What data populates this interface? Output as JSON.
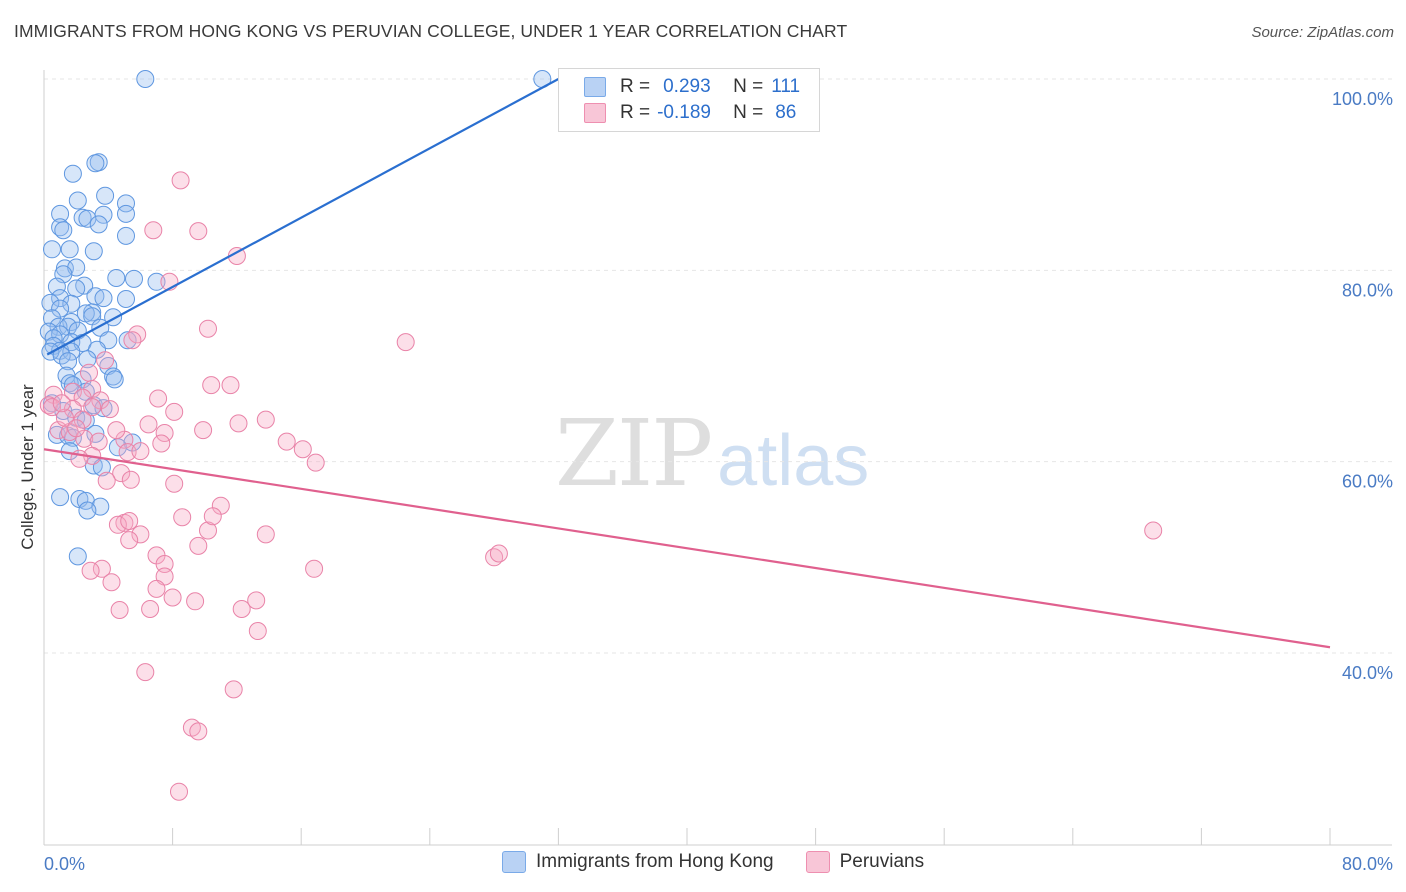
{
  "title": "IMMIGRANTS FROM HONG KONG VS PERUVIAN COLLEGE, UNDER 1 YEAR CORRELATION CHART",
  "source": "Source: ZipAtlas.com",
  "watermark": {
    "zip": "ZIP",
    "atlas": "atlas"
  },
  "legend": {
    "r_label": "R =",
    "n_label": "N =",
    "series": [
      {
        "name": "Immigrants from Hong Kong",
        "r": "0.293",
        "n": "111",
        "color": "#7aaae8",
        "fill": "#b9d2f4"
      },
      {
        "name": "Peruvians",
        "r": "-0.189",
        "n": "86",
        "color": "#ee8fb0",
        "fill": "#f8c6d7"
      }
    ]
  },
  "chart_data": {
    "type": "scatter",
    "title": "IMMIGRANTS FROM HONG KONG VS PERUVIAN COLLEGE, UNDER 1 YEAR CORRELATION CHART",
    "xlabel": "",
    "ylabel": "College, Under 1 year",
    "xlim": [
      0,
      80
    ],
    "ylim": [
      20,
      102
    ],
    "x_tick_labels": [
      "0.0%",
      "80.0%"
    ],
    "y_ticks": [
      40,
      60,
      80,
      100
    ],
    "y_tick_labels": [
      "40.0%",
      "60.0%",
      "80.0%",
      "100.0%"
    ],
    "grid": true,
    "legend_position": "top-center",
    "series": [
      {
        "name": "Immigrants from Hong Kong",
        "color": "#2a6fd0",
        "trend": {
          "x0": 0.2,
          "y0": 71.2,
          "x1": 32.0,
          "y1": 100.0
        },
        "points": [
          [
            6.3,
            100
          ],
          [
            31,
            100
          ],
          [
            3.4,
            91.3
          ],
          [
            3.2,
            91.2
          ],
          [
            1.8,
            90.1
          ],
          [
            3.8,
            87.8
          ],
          [
            2.1,
            87.3
          ],
          [
            5.1,
            87
          ],
          [
            1.0,
            85.9
          ],
          [
            3.7,
            85.8
          ],
          [
            2.4,
            85.5
          ],
          [
            5.1,
            85.9
          ],
          [
            2.7,
            85.4
          ],
          [
            3.4,
            84.8
          ],
          [
            1.0,
            84.5
          ],
          [
            1.2,
            84.2
          ],
          [
            5.1,
            83.6
          ],
          [
            0.5,
            82.2
          ],
          [
            1.6,
            82.2
          ],
          [
            3.1,
            82.0
          ],
          [
            1.3,
            80.2
          ],
          [
            2.0,
            80.3
          ],
          [
            1.2,
            79.6
          ],
          [
            4.5,
            79.2
          ],
          [
            5.6,
            79.1
          ],
          [
            7,
            78.8
          ],
          [
            2.5,
            78.4
          ],
          [
            0.8,
            78.3
          ],
          [
            2.0,
            78.1
          ],
          [
            3.2,
            77.3
          ],
          [
            1.0,
            77.1
          ],
          [
            3.7,
            77.1
          ],
          [
            5.1,
            77.0
          ],
          [
            0.4,
            76.6
          ],
          [
            1.7,
            76.5
          ],
          [
            1.0,
            76.0
          ],
          [
            3.0,
            75.6
          ],
          [
            2.6,
            75.5
          ],
          [
            3.0,
            75.2
          ],
          [
            4.3,
            75.1
          ],
          [
            0.5,
            75.0
          ],
          [
            1.7,
            74.6
          ],
          [
            0.9,
            74.1
          ],
          [
            1.5,
            74.1
          ],
          [
            2.1,
            73.7
          ],
          [
            3.5,
            74.0
          ],
          [
            0.3,
            73.6
          ],
          [
            1.0,
            73.3
          ],
          [
            0.6,
            72.9
          ],
          [
            1.7,
            72.5
          ],
          [
            2.4,
            72.4
          ],
          [
            0.6,
            72.1
          ],
          [
            5.2,
            72.7
          ],
          [
            4.0,
            72.7
          ],
          [
            1.0,
            71.6
          ],
          [
            1.7,
            71.5
          ],
          [
            3.3,
            71.7
          ],
          [
            0.4,
            71.5
          ],
          [
            1.1,
            71.1
          ],
          [
            2.7,
            70.7
          ],
          [
            1.5,
            70.5
          ],
          [
            4.0,
            70.0
          ],
          [
            1.4,
            69.0
          ],
          [
            4.3,
            68.9
          ],
          [
            4.4,
            68.6
          ],
          [
            2.4,
            68.6
          ],
          [
            1.6,
            68.2
          ],
          [
            1.8,
            68.0
          ],
          [
            2.6,
            67.3
          ],
          [
            0.5,
            66.1
          ],
          [
            3.1,
            65.9
          ],
          [
            1.2,
            65.3
          ],
          [
            3.7,
            65.6
          ],
          [
            2.0,
            64.6
          ],
          [
            2.6,
            64.3
          ],
          [
            3.2,
            62.9
          ],
          [
            0.8,
            62.8
          ],
          [
            1.5,
            62.7
          ],
          [
            1.8,
            62.5
          ],
          [
            5.5,
            62.0
          ],
          [
            4.6,
            61.5
          ],
          [
            1.6,
            61.1
          ],
          [
            3.1,
            59.6
          ],
          [
            3.6,
            59.4
          ],
          [
            1.0,
            56.3
          ],
          [
            2.2,
            56.1
          ],
          [
            2.6,
            55.9
          ],
          [
            3.5,
            55.3
          ],
          [
            2.7,
            54.9
          ],
          [
            2.1,
            50.1
          ]
        ]
      },
      {
        "name": "Peruvians",
        "color": "#e0608e",
        "trend": {
          "x0": 0.0,
          "y0": 61.3,
          "x1": 80.0,
          "y1": 40.6
        },
        "points": [
          [
            8.5,
            89.4
          ],
          [
            9.6,
            84.1
          ],
          [
            6.8,
            84.2
          ],
          [
            12.0,
            81.5
          ],
          [
            7.8,
            78.8
          ],
          [
            10.2,
            73.9
          ],
          [
            5.8,
            73.3
          ],
          [
            22.5,
            72.5
          ],
          [
            5.5,
            72.7
          ],
          [
            3.8,
            70.6
          ],
          [
            2.8,
            69.3
          ],
          [
            0.6,
            67.0
          ],
          [
            3.0,
            67.6
          ],
          [
            1.8,
            67.3
          ],
          [
            2.4,
            66.7
          ],
          [
            3.5,
            66.4
          ],
          [
            10.4,
            68.0
          ],
          [
            11.6,
            68.0
          ],
          [
            7.1,
            66.6
          ],
          [
            0.3,
            65.9
          ],
          [
            1.8,
            65.5
          ],
          [
            0.5,
            65.7
          ],
          [
            4.1,
            65.5
          ],
          [
            3.0,
            65.7
          ],
          [
            8.1,
            65.2
          ],
          [
            2.4,
            64.4
          ],
          [
            13.8,
            64.4
          ],
          [
            6.5,
            63.9
          ],
          [
            0.9,
            63.3
          ],
          [
            1.6,
            63.1
          ],
          [
            7.5,
            63.0
          ],
          [
            15.1,
            62.1
          ],
          [
            2.5,
            62.4
          ],
          [
            3.4,
            62.1
          ],
          [
            7.3,
            61.9
          ],
          [
            5.0,
            62.3
          ],
          [
            16.1,
            61.3
          ],
          [
            5.2,
            61.0
          ],
          [
            3.0,
            60.6
          ],
          [
            16.9,
            59.9
          ],
          [
            4.8,
            58.8
          ],
          [
            5.4,
            58.1
          ],
          [
            8.1,
            57.7
          ],
          [
            11.0,
            55.4
          ],
          [
            8.6,
            54.2
          ],
          [
            5.0,
            53.6
          ],
          [
            4.6,
            53.4
          ],
          [
            10.2,
            52.8
          ],
          [
            13.8,
            52.4
          ],
          [
            6.0,
            52.4
          ],
          [
            9.6,
            51.2
          ],
          [
            5.3,
            51.8
          ],
          [
            7.0,
            50.2
          ],
          [
            28.0,
            50.0
          ],
          [
            28.3,
            50.4
          ],
          [
            7.5,
            49.3
          ],
          [
            3.6,
            48.8
          ],
          [
            16.8,
            48.8
          ],
          [
            7.5,
            48.0
          ],
          [
            4.2,
            47.4
          ],
          [
            7.0,
            46.7
          ],
          [
            8.0,
            45.8
          ],
          [
            9.4,
            45.4
          ],
          [
            12.3,
            44.6
          ],
          [
            13.2,
            45.5
          ],
          [
            6.6,
            44.6
          ],
          [
            4.7,
            44.5
          ],
          [
            13.3,
            42.3
          ],
          [
            6.3,
            38.0
          ],
          [
            11.8,
            36.2
          ],
          [
            9.2,
            32.2
          ],
          [
            9.6,
            31.8
          ],
          [
            8.4,
            25.5
          ],
          [
            69,
            52.8
          ],
          [
            2.9,
            48.6
          ],
          [
            1.3,
            64.6
          ],
          [
            2.2,
            60.3
          ],
          [
            5.3,
            53.8
          ],
          [
            10.5,
            54.3
          ],
          [
            3.9,
            58.0
          ],
          [
            2.0,
            63.5
          ],
          [
            1.1,
            66.1
          ],
          [
            4.5,
            63.3
          ],
          [
            12.1,
            64.0
          ],
          [
            6.0,
            61.1
          ],
          [
            9.9,
            63.3
          ]
        ]
      }
    ]
  }
}
